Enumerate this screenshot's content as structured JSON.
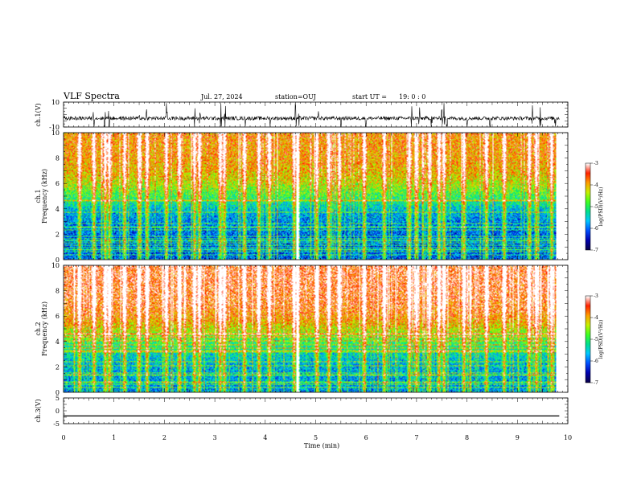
{
  "header": {
    "title": "VLF Spectra",
    "date": "Jul. 27, 2024",
    "station": "station=OUJ",
    "start_label": "start UT =",
    "start_time": "19: 0 : 0"
  },
  "colors": {
    "spectrogram_colormap": [
      "#08004a",
      "#0000b0",
      "#0050ff",
      "#00c8ff",
      "#00e08c",
      "#40ff20",
      "#c8f000",
      "#ff9c00",
      "#ff2200",
      "#ffffff"
    ]
  },
  "chart_data": [
    {
      "type": "line",
      "name": "ch1-waveform",
      "ylabel": "ch.1(V)",
      "ylim": [
        -10,
        10
      ],
      "yticks": [
        10,
        -10
      ],
      "xlim": [
        0,
        10
      ],
      "baseline": -3,
      "noise_amplitude": 1.5,
      "spike_times_min": [
        0.6,
        0.82,
        0.9,
        1.5,
        1.65,
        2.05,
        2.6,
        2.7,
        3.12,
        3.2,
        3.6,
        4.1,
        4.6,
        4.67,
        5.05,
        5.5,
        6.0,
        6.9,
        7.05,
        7.3,
        7.5,
        7.55,
        7.6,
        8.0,
        8.45,
        9.3,
        9.45,
        9.75
      ]
    },
    {
      "type": "heatmap",
      "name": "ch1-spectrogram",
      "ylabel": "ch.1 Frequency (kHz)",
      "xlim": [
        0,
        9.83
      ],
      "ylim": [
        0,
        10
      ],
      "yticks": [
        0,
        2,
        4,
        6,
        8,
        10
      ],
      "colorbar": {
        "label": "log(PSD)(V²/Hz)",
        "range": [
          -7,
          -3
        ],
        "ticks": [
          "-3",
          "-4",
          "-5",
          "-6",
          "-7"
        ]
      },
      "level_low_freq": -6.1,
      "level_high_freq": -3.8,
      "transition_khz": 5,
      "gap_time_min": 4.67,
      "impulse_times_min": [
        0.3,
        0.6,
        0.82,
        0.9,
        1.2,
        1.5,
        1.65,
        2.05,
        2.3,
        2.6,
        2.7,
        3.12,
        3.2,
        3.6,
        3.9,
        4.1,
        4.6,
        4.67,
        5.05,
        5.3,
        5.5,
        6.0,
        6.4,
        6.9,
        7.05,
        7.3,
        7.5,
        7.6,
        8.0,
        8.45,
        8.8,
        9.3,
        9.45,
        9.75
      ]
    },
    {
      "type": "heatmap",
      "name": "ch2-spectrogram",
      "ylabel": "ch.2 Frequency (kHz)",
      "xlim": [
        0,
        9.83
      ],
      "ylim": [
        0,
        10
      ],
      "yticks": [
        0,
        2,
        4,
        6,
        8,
        10
      ],
      "colorbar": {
        "label": "log(PSD)(V²/Hz)",
        "range": [
          -7,
          -3
        ],
        "ticks": [
          "-3",
          "-4",
          "-5",
          "-6",
          "-7"
        ]
      },
      "level_low_freq": -5.8,
      "level_high_freq": -3.4,
      "transition_khz": 4.5,
      "gap_time_min": 4.67,
      "impulse_times_min": [
        0.3,
        0.6,
        0.82,
        0.9,
        1.2,
        1.5,
        1.65,
        2.05,
        2.3,
        2.6,
        2.7,
        3.12,
        3.2,
        3.6,
        3.9,
        4.1,
        4.6,
        4.67,
        5.05,
        5.3,
        5.5,
        6.0,
        6.4,
        6.9,
        7.05,
        7.3,
        7.5,
        7.6,
        8.0,
        8.45,
        8.8,
        9.3,
        9.45,
        9.75
      ]
    },
    {
      "type": "line",
      "name": "ch3-waveform",
      "ylabel": "ch.3(V)",
      "ylim": [
        -5,
        5
      ],
      "yticks": [
        5,
        0,
        -5
      ],
      "xlim": [
        0,
        9.83
      ],
      "constant_value": -2,
      "xlabel": "Time (min)",
      "xticks": [
        0,
        1,
        2,
        3,
        4,
        5,
        6,
        7,
        8,
        9,
        10
      ]
    }
  ]
}
